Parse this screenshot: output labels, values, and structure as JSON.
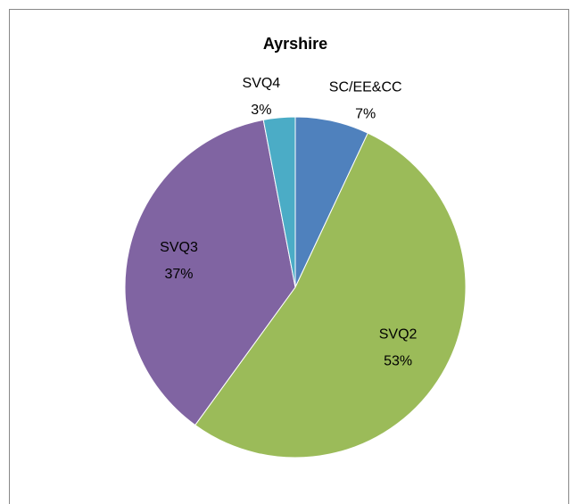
{
  "chart_data": {
    "type": "pie",
    "title": "Ayrshire",
    "categories": [
      "SC/EE&CC",
      "SVQ2",
      "SVQ3",
      "SVQ4"
    ],
    "values": [
      7,
      53,
      37,
      3
    ],
    "value_labels": [
      "7%",
      "53%",
      "37%",
      "3%"
    ],
    "colors": [
      "#4f81bd",
      "#9bbb59",
      "#8064a2",
      "#4bacc6"
    ]
  }
}
